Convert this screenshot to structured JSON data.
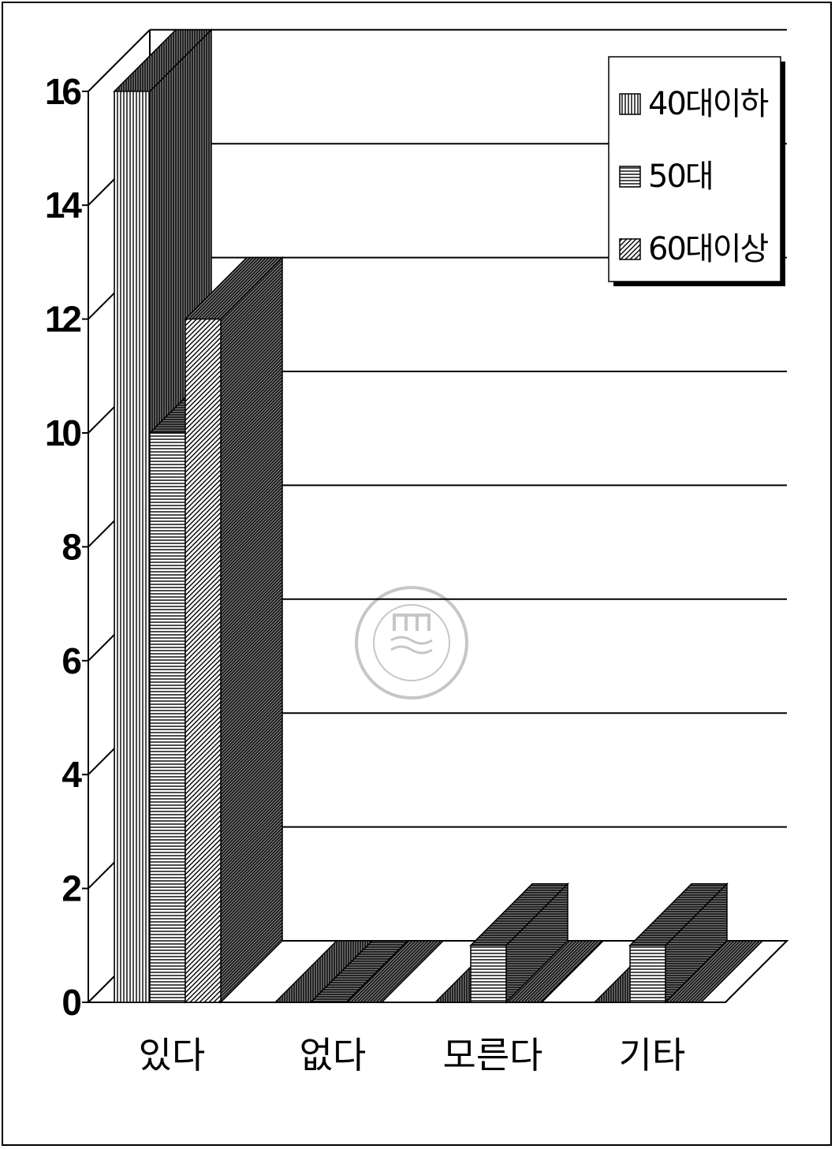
{
  "chart_data": {
    "type": "bar",
    "categories": [
      "있다",
      "없다",
      "모른다",
      "기타"
    ],
    "series": [
      {
        "name": "40대이하",
        "values": [
          16,
          0,
          0,
          0
        ]
      },
      {
        "name": "50대",
        "values": [
          10,
          0,
          1,
          1
        ]
      },
      {
        "name": "60대이상",
        "values": [
          12,
          0,
          0,
          0
        ]
      }
    ],
    "ylim": [
      0,
      16
    ],
    "yticks": [
      "0",
      "2",
      "4",
      "6",
      "8",
      "10",
      "12",
      "14",
      "16"
    ],
    "grid": true,
    "legend": "top-right",
    "style": "3d-bar-hatched",
    "watermark": "KOREA MARITIME UNIVERSITY 한국해양대학교 1945"
  }
}
